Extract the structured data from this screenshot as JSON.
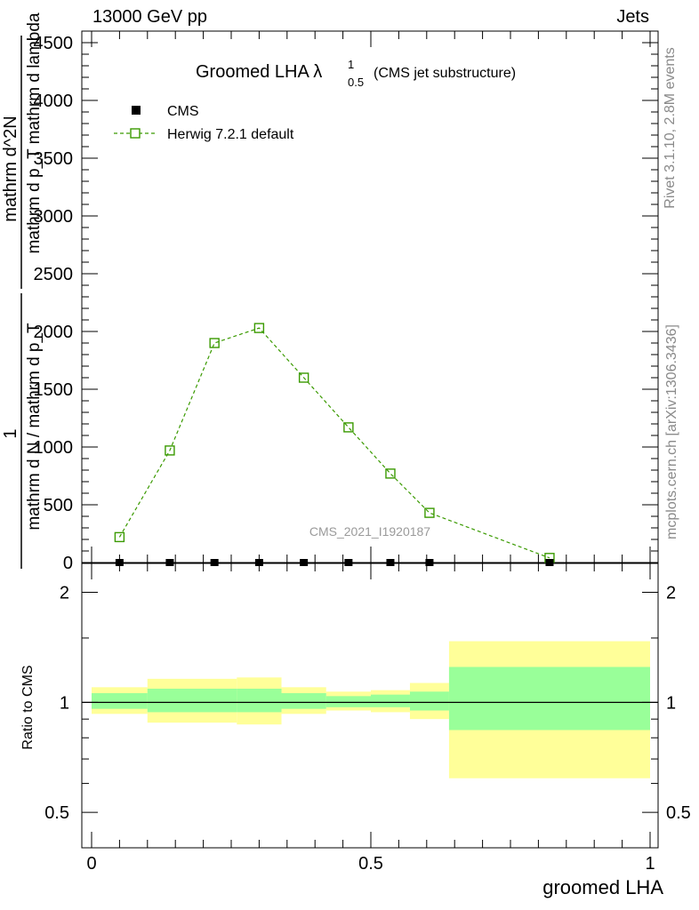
{
  "header": {
    "left": "13000 GeV pp",
    "right": "Jets"
  },
  "side_labels": {
    "rivet": "Rivet 3.1.10,  2.8M events",
    "mcplots": "mcplots.cern.ch [arXiv:1306.3436]"
  },
  "main_ylabel": {
    "numerator": "1",
    "denominator": "mathrm d N / mathrm d p_T",
    "fraction_top": "mathrm d^2N",
    "fraction_bottom": "mathrm d p_T mathrm d lambda"
  },
  "chart_data": [
    {
      "type": "line",
      "title": "Groomed LHA λ",
      "title_sup": "1",
      "title_sub": "0.5",
      "title_note": "(CMS jet substructure)",
      "watermark": "CMS_2021_I1920187",
      "xlim": [
        0,
        1
      ],
      "ylim": [
        0,
        4600
      ],
      "yticks": [
        0,
        500,
        1000,
        1500,
        2000,
        2500,
        3000,
        3500,
        4000,
        4500
      ],
      "ytick_labels": [
        "0",
        "500",
        "1000",
        "1500",
        "2000",
        "2500",
        "3000",
        "3500",
        "4000",
        "4500"
      ],
      "legend_position": "top-left",
      "series": [
        {
          "name": "CMS",
          "color": "#000000",
          "marker": "filled-square",
          "x": [
            0.05,
            0.14,
            0.22,
            0.3,
            0.38,
            0.46,
            0.535,
            0.605,
            0.82
          ],
          "y": [
            0,
            0,
            0,
            0,
            0,
            0,
            0,
            0,
            0
          ]
        },
        {
          "name": "Herwig 7.2.1 default",
          "color": "#3a9a00",
          "marker": "open-square",
          "linestyle": "dashed",
          "x": [
            0.05,
            0.14,
            0.22,
            0.3,
            0.38,
            0.46,
            0.535,
            0.605,
            0.82
          ],
          "y": [
            220,
            970,
            1900,
            2030,
            1600,
            1170,
            770,
            430,
            40
          ]
        }
      ]
    },
    {
      "type": "area",
      "ylabel": "Ratio to CMS",
      "xlabel": "groomed LHA",
      "xlim": [
        0,
        1
      ],
      "ylim": [
        0.4,
        2.4
      ],
      "log_y": true,
      "yticks": [
        0.5,
        1,
        2
      ],
      "ytick_labels": [
        "0.5",
        "1",
        "2"
      ],
      "xticks": [
        0,
        0.5,
        1
      ],
      "xtick_labels": [
        "0",
        "0.5",
        "1"
      ],
      "reference_line": 1,
      "band_colors": {
        "inner": "#99ff99",
        "outer": "#ffff99"
      },
      "bins": [
        {
          "lo": 0.0,
          "hi": 0.1,
          "inner": [
            0.96,
            1.06
          ],
          "outer": [
            0.93,
            1.1
          ]
        },
        {
          "lo": 0.1,
          "hi": 0.26,
          "inner": [
            0.94,
            1.09
          ],
          "outer": [
            0.88,
            1.16
          ]
        },
        {
          "lo": 0.26,
          "hi": 0.34,
          "inner": [
            0.94,
            1.09
          ],
          "outer": [
            0.87,
            1.17
          ]
        },
        {
          "lo": 0.34,
          "hi": 0.42,
          "inner": [
            0.96,
            1.06
          ],
          "outer": [
            0.93,
            1.1
          ]
        },
        {
          "lo": 0.42,
          "hi": 0.5,
          "inner": [
            0.97,
            1.04
          ],
          "outer": [
            0.95,
            1.07
          ]
        },
        {
          "lo": 0.5,
          "hi": 0.57,
          "inner": [
            0.97,
            1.05
          ],
          "outer": [
            0.94,
            1.08
          ]
        },
        {
          "lo": 0.57,
          "hi": 0.64,
          "inner": [
            0.95,
            1.07
          ],
          "outer": [
            0.9,
            1.13
          ]
        },
        {
          "lo": 0.64,
          "hi": 1.0,
          "inner": [
            0.84,
            1.25
          ],
          "outer": [
            0.62,
            1.47
          ]
        }
      ]
    }
  ]
}
